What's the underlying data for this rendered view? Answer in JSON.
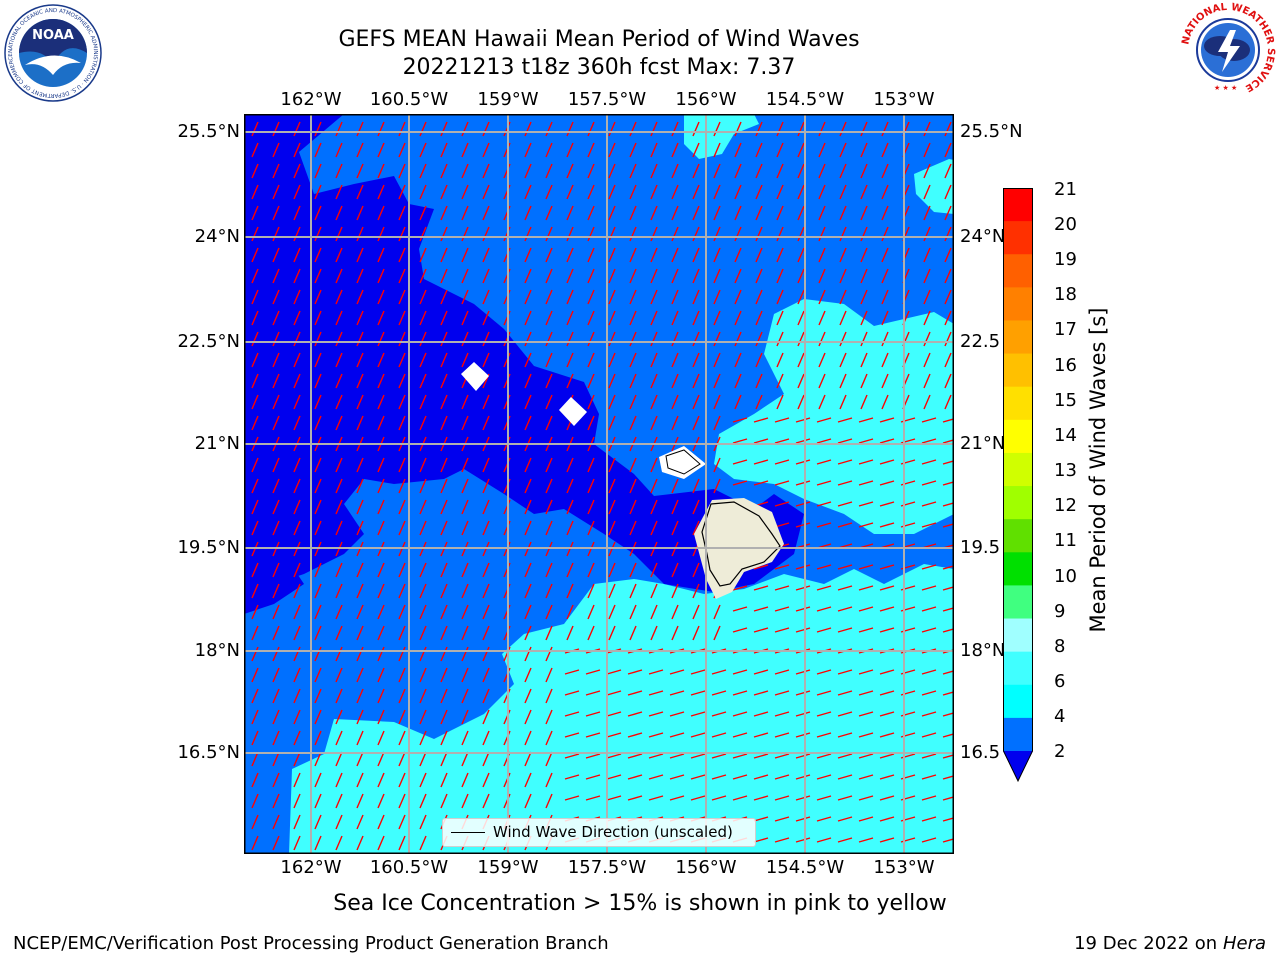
{
  "title_line1": "GEFS MEAN Hawaii Mean Period of Wind Waves",
  "title_line2": "20221213 t18z 360h fcst   Max: 7.37",
  "longitude_labels": [
    "162°W",
    "160.5°W",
    "159°W",
    "157.5°W",
    "156°W",
    "154.5°W",
    "153°W"
  ],
  "latitude_labels": [
    "25.5°N",
    "24°N",
    "22.5°N",
    "21°N",
    "19.5°N",
    "18°N",
    "16.5°N"
  ],
  "latitude_labels_right": [
    "25.5°N",
    "24°N",
    "22.5",
    "21°N",
    "19.5",
    "18°N",
    "16.5"
  ],
  "legend_label": "Wind Wave Direction (unscaled)",
  "colorbar": {
    "title": "Mean Period of Wind Waves [s]",
    "ticks": [
      "21",
      "20",
      "19",
      "18",
      "17",
      "16",
      "15",
      "14",
      "13",
      "12",
      "11",
      "10",
      "9",
      "8",
      "6",
      "4",
      "2"
    ],
    "colors": [
      "#0000ee",
      "#0070ff",
      "#00ffff",
      "#40ffff",
      "#a0ffff",
      "#40ff80",
      "#00e000",
      "#60e000",
      "#a0ff00",
      "#d0ff00",
      "#ffff00",
      "#ffe000",
      "#ffc000",
      "#ffa000",
      "#ff8000",
      "#ff6000",
      "#ff3000",
      "#ff0000"
    ],
    "underflow_color": "#0000ee"
  },
  "map_colors": {
    "period_below_2": "#0000ee",
    "period_2_to_4": "#0070ff",
    "period_4_to_6": "#40ffff",
    "land": "#eeecd8",
    "arrows": "#ff0000",
    "gridlines": "#b0b0b0"
  },
  "sea_ice_note": "Sea Ice Concentration > 15% is shown in pink to yellow",
  "footer_left": "NCEP/EMC/Verification Post Processing Product Generation Branch",
  "footer_date": "19 Dec 2022 on",
  "footer_host": "Hera",
  "logos": {
    "left_logo_text": "NOAA",
    "left_logo_ring": "NATIONAL OCEANIC AND ATMOSPHERIC ADMINISTRATION · U.S. DEPARTMENT OF COMMERCE",
    "right_logo_ring": "NATIONAL WEATHER SERVICE"
  }
}
